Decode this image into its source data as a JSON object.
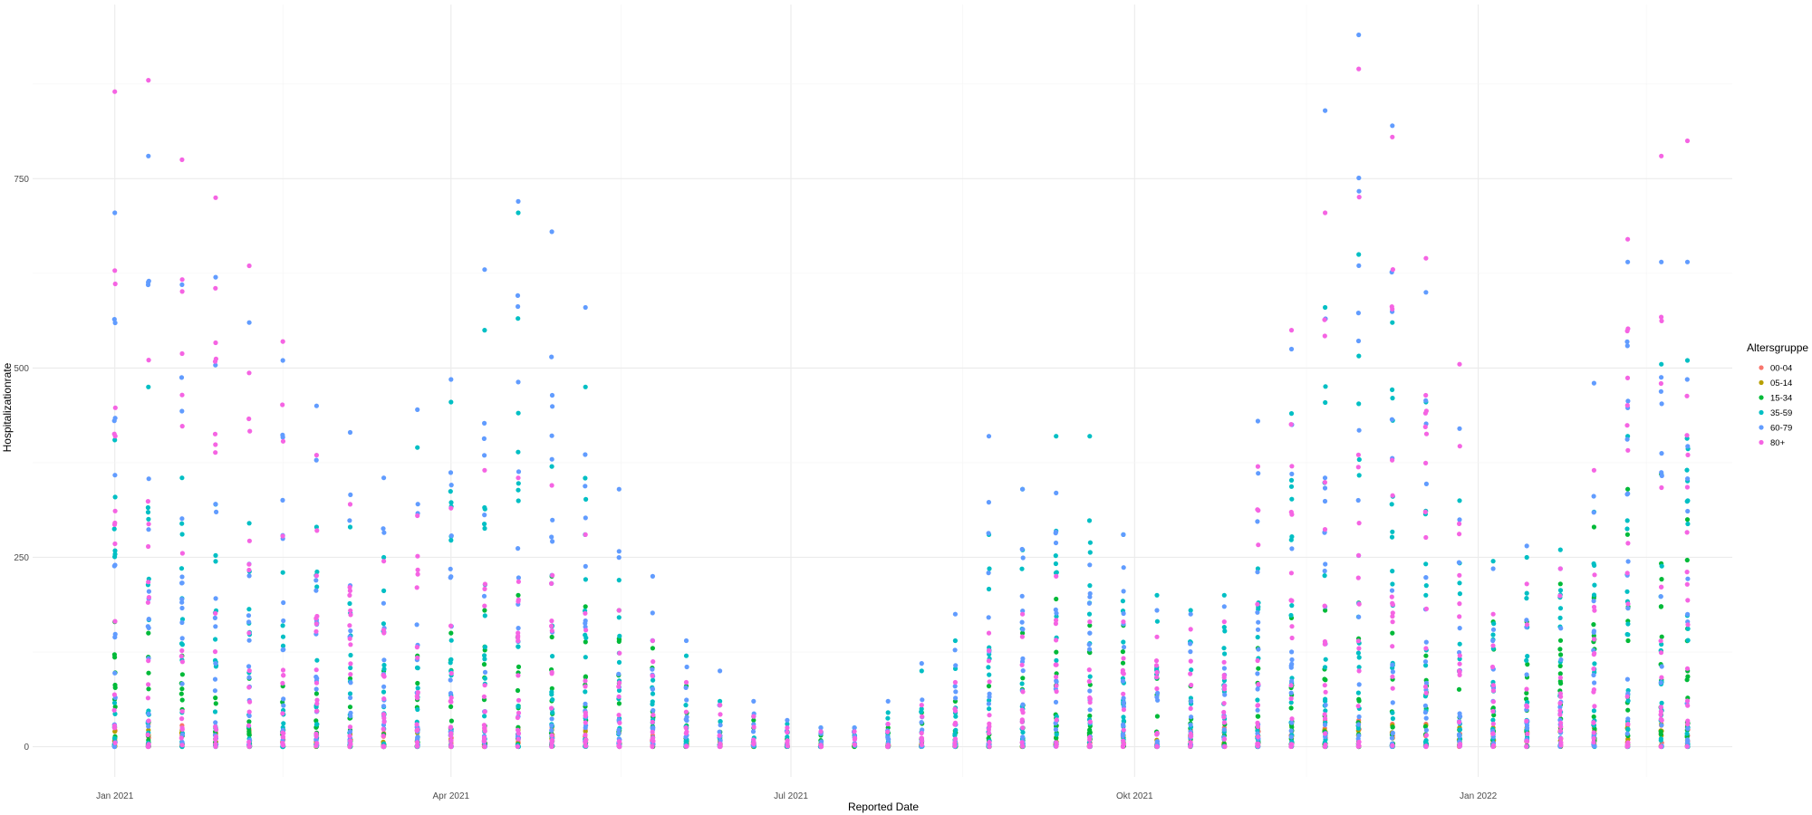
{
  "chart_data": {
    "type": "scatter",
    "title": "",
    "xlabel": "Reported Date",
    "ylabel": "Hospitalizationrate",
    "x_tick_labels": [
      "Jan 2021",
      "Apr 2021",
      "Jul 2021",
      "Okt 2021",
      "Jan 2022"
    ],
    "x_tick_dates": [
      "2021-01-01",
      "2021-04-01",
      "2021-07-01",
      "2021-10-01",
      "2022-01-01"
    ],
    "x_range": [
      "2020-12-10",
      "2022-03-10"
    ],
    "ylim": [
      -40,
      980
    ],
    "y_ticks": [
      0,
      250,
      500,
      750
    ],
    "grid": true,
    "legend": {
      "title": "Altersgruppe",
      "position": "right"
    },
    "series": [
      {
        "name": "00-04",
        "color": "#F8766D"
      },
      {
        "name": "05-14",
        "color": "#B79F00"
      },
      {
        "name": "15-34",
        "color": "#00BA38"
      },
      {
        "name": "35-59",
        "color": "#00BFC4"
      },
      {
        "name": "60-79",
        "color": "#619CFF"
      },
      {
        "name": "80+",
        "color": "#F564E3"
      }
    ],
    "weeks": [
      "2021-01-01",
      "2021-01-10",
      "2021-01-19",
      "2021-01-28",
      "2021-02-06",
      "2021-02-15",
      "2021-02-24",
      "2021-03-05",
      "2021-03-14",
      "2021-03-23",
      "2021-04-01",
      "2021-04-10",
      "2021-04-19",
      "2021-04-28",
      "2021-05-07",
      "2021-05-16",
      "2021-05-25",
      "2021-06-03",
      "2021-06-12",
      "2021-06-21",
      "2021-06-30",
      "2021-07-09",
      "2021-07-18",
      "2021-07-27",
      "2021-08-05",
      "2021-08-14",
      "2021-08-23",
      "2021-09-01",
      "2021-09-10",
      "2021-09-19",
      "2021-09-28",
      "2021-10-07",
      "2021-10-16",
      "2021-10-25",
      "2021-11-03",
      "2021-11-12",
      "2021-11-21",
      "2021-11-30",
      "2021-12-09",
      "2021-12-18",
      "2021-12-27",
      "2022-01-05",
      "2022-01-14",
      "2022-01-23",
      "2022-02-01",
      "2022-02-10",
      "2022-02-19",
      "2022-02-26"
    ],
    "weekly_max": {
      "00-04": [
        25,
        30,
        28,
        25,
        22,
        20,
        18,
        18,
        18,
        20,
        22,
        25,
        25,
        25,
        22,
        20,
        15,
        10,
        8,
        6,
        5,
        4,
        4,
        4,
        5,
        6,
        8,
        10,
        12,
        14,
        15,
        18,
        22,
        25,
        30,
        30,
        35,
        35,
        30,
        30,
        25,
        22,
        22,
        22,
        25,
        28,
        28,
        28
      ],
      "05-14": [
        20,
        22,
        22,
        20,
        18,
        18,
        16,
        16,
        16,
        18,
        20,
        22,
        22,
        22,
        20,
        18,
        12,
        8,
        6,
        5,
        4,
        3,
        3,
        4,
        5,
        6,
        8,
        10,
        12,
        14,
        15,
        18,
        20,
        22,
        25,
        28,
        32,
        32,
        28,
        28,
        25,
        25,
        25,
        25,
        28,
        30,
        30,
        30
      ],
      "15-34": [
        165,
        150,
        120,
        110,
        90,
        80,
        70,
        90,
        100,
        120,
        150,
        180,
        200,
        225,
        185,
        180,
        130,
        80,
        55,
        35,
        20,
        15,
        15,
        25,
        45,
        60,
        80,
        150,
        195,
        160,
        160,
        90,
        80,
        80,
        130,
        170,
        180,
        190,
        150,
        120,
        100,
        165,
        165,
        215,
        290,
        340,
        360,
        300
      ],
      "35-59": [
        405,
        475,
        355,
        320,
        295,
        230,
        290,
        290,
        250,
        395,
        455,
        550,
        705,
        370,
        475,
        220,
        140,
        120,
        60,
        40,
        30,
        25,
        25,
        45,
        100,
        140,
        280,
        340,
        410,
        410,
        280,
        200,
        180,
        200,
        235,
        440,
        580,
        650,
        560,
        455,
        325,
        245,
        250,
        260,
        310,
        410,
        505,
        510
      ],
      "60-79": [
        705,
        780,
        610,
        620,
        560,
        510,
        450,
        415,
        355,
        445,
        485,
        630,
        720,
        680,
        580,
        340,
        225,
        140,
        100,
        60,
        35,
        25,
        25,
        60,
        110,
        175,
        410,
        340,
        335,
        240,
        280,
        180,
        175,
        185,
        430,
        525,
        840,
        940,
        820,
        600,
        420,
        235,
        265,
        235,
        480,
        640,
        640,
        640
      ],
      "80+": [
        865,
        880,
        775,
        725,
        635,
        535,
        385,
        320,
        245,
        305,
        315,
        365,
        355,
        345,
        280,
        180,
        140,
        85,
        55,
        40,
        25,
        20,
        20,
        30,
        55,
        85,
        150,
        175,
        225,
        165,
        165,
        145,
        155,
        165,
        370,
        550,
        705,
        895,
        805,
        645,
        505,
        175,
        215,
        235,
        365,
        670,
        780,
        800
      ]
    }
  }
}
